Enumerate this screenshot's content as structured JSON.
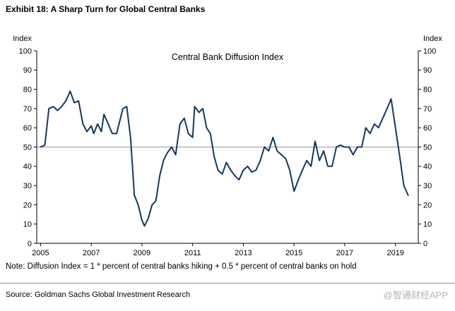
{
  "header": {
    "title": "Exhibit 18: A Sharp Turn for Global Central Banks"
  },
  "chart_data": {
    "type": "line",
    "title": "Central Bank Diffusion Index",
    "left_axis_label": "Index",
    "right_axis_label": "Index",
    "ylim": [
      0,
      100
    ],
    "ytick_step": 10,
    "xticks": [
      2005,
      2007,
      2009,
      2011,
      2013,
      2015,
      2017,
      2019
    ],
    "x_range": [
      2004.85,
      2019.9
    ],
    "reference_line": 50,
    "grid": "off",
    "legend": "none",
    "line_color": "#17375e",
    "reference_line_color": "#999999",
    "axis_color": "#000000",
    "series": [
      {
        "name": "Central Bank Diffusion Index",
        "x": [
          2005.0,
          2005.17,
          2005.33,
          2005.5,
          2005.67,
          2005.83,
          2006.0,
          2006.17,
          2006.33,
          2006.5,
          2006.67,
          2006.83,
          2007.0,
          2007.1,
          2007.25,
          2007.4,
          2007.5,
          2007.67,
          2007.83,
          2008.0,
          2008.25,
          2008.4,
          2008.55,
          2008.7,
          2008.85,
          2009.0,
          2009.1,
          2009.25,
          2009.4,
          2009.55,
          2009.7,
          2009.85,
          2010.0,
          2010.17,
          2010.33,
          2010.5,
          2010.67,
          2010.83,
          2011.0,
          2011.08,
          2011.25,
          2011.4,
          2011.55,
          2011.7,
          2011.85,
          2012.0,
          2012.17,
          2012.33,
          2012.5,
          2012.67,
          2012.83,
          2013.0,
          2013.17,
          2013.33,
          2013.5,
          2013.67,
          2013.83,
          2014.0,
          2014.17,
          2014.33,
          2014.5,
          2014.67,
          2014.83,
          2015.0,
          2015.17,
          2015.33,
          2015.5,
          2015.67,
          2015.83,
          2016.0,
          2016.17,
          2016.33,
          2016.5,
          2016.67,
          2016.83,
          2017.0,
          2017.17,
          2017.33,
          2017.5,
          2017.67,
          2017.83,
          2018.0,
          2018.17,
          2018.33,
          2018.5,
          2018.67,
          2018.83,
          2019.0,
          2019.17,
          2019.33,
          2019.5
        ],
        "y": [
          50,
          51,
          70,
          71,
          69,
          71,
          74,
          79,
          73,
          74,
          62,
          58,
          61,
          57,
          62,
          58,
          67,
          62,
          57,
          57,
          70,
          71,
          55,
          25,
          20,
          12,
          9,
          13,
          20,
          22,
          35,
          43,
          47,
          50,
          46,
          62,
          65,
          57,
          55,
          71,
          68,
          70,
          60,
          57,
          45,
          38,
          36,
          42,
          38,
          35,
          33,
          38,
          40,
          37,
          38,
          43,
          50,
          48,
          55,
          48,
          46,
          44,
          38,
          27,
          33,
          38,
          43,
          40,
          53,
          43,
          48,
          40,
          40,
          50,
          51,
          50,
          50,
          46,
          50,
          50,
          60,
          57,
          62,
          60,
          65,
          70,
          75,
          60,
          45,
          30,
          25
        ]
      }
    ]
  },
  "footer": {
    "note": "Note: Diffusion Index = 1 * percent of central banks hiking + 0.5 * percent of central banks on hold",
    "source": "Source: Goldman Sachs Global Investment Research",
    "watermark": "@智通财经APP"
  }
}
